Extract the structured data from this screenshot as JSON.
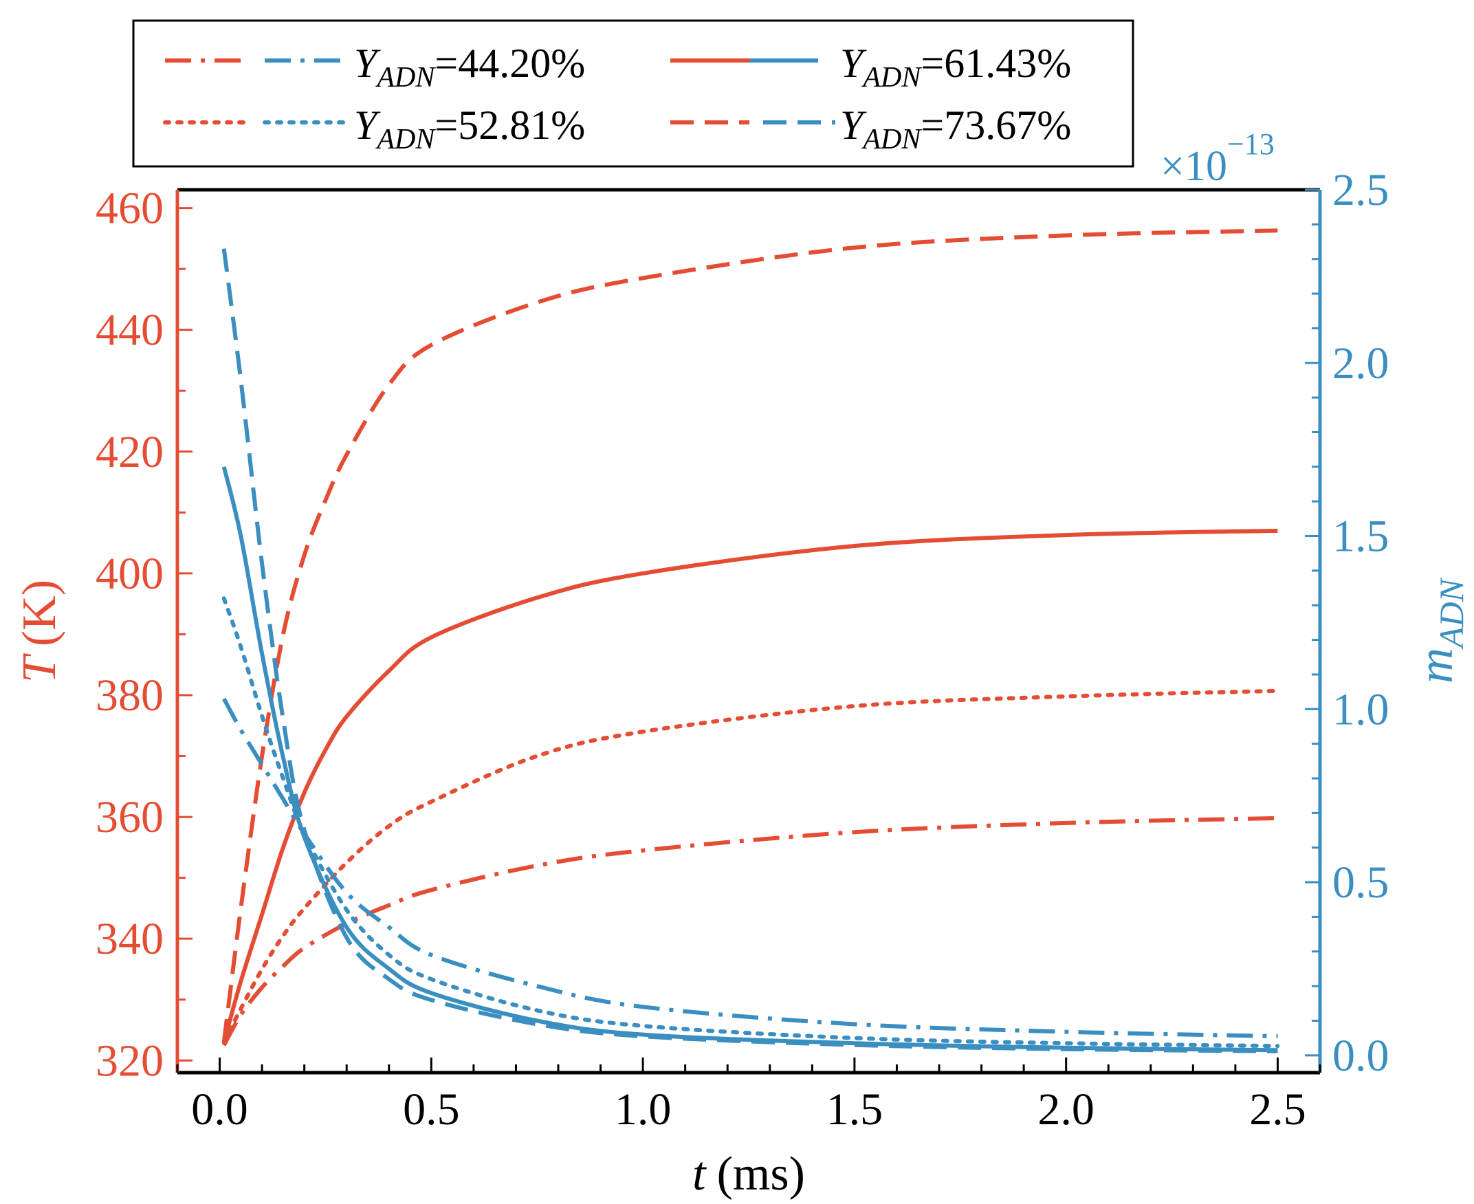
{
  "chart_data": {
    "type": "line",
    "xlabel": "t (ms)",
    "xlabel_italic_part": "t",
    "xlabel_unit": "(ms)",
    "ylabel_left": "T (K)",
    "ylabel_left_italic_part": "T",
    "ylabel_left_unit": "(K)",
    "ylabel_right": "m_ADN",
    "ylabel_right_main": "m",
    "ylabel_right_sub": "ADN",
    "right_axis_multiplier_base": "×10",
    "right_axis_multiplier_exponent": "−13",
    "xlim": [
      -0.1,
      2.6
    ],
    "ylim_left": [
      318,
      463
    ],
    "ylim_right": [
      -0.05,
      2.5
    ],
    "x_ticks": [
      "0.0",
      "0.5",
      "1.0",
      "1.5",
      "2.0",
      "2.5"
    ],
    "y_left_ticks": [
      "320",
      "340",
      "360",
      "380",
      "400",
      "420",
      "440",
      "460"
    ],
    "y_right_ticks": [
      "0.0",
      "0.5",
      "1.0",
      "1.5",
      "2.0",
      "2.5"
    ],
    "colors": {
      "temperature": "#e44d34",
      "mass": "#3a8fc0",
      "axis": "#000000"
    },
    "legend_placement": "top, above plot",
    "legend": [
      {
        "label_main": "Y",
        "label_sub": "ADN",
        "label_value": "=44.20%",
        "style": "dashdot"
      },
      {
        "label_main": "Y",
        "label_sub": "ADN",
        "label_value": "=61.43%",
        "style": "solid"
      },
      {
        "label_main": "Y",
        "label_sub": "ADN",
        "label_value": "=52.81%",
        "style": "dotted"
      },
      {
        "label_main": "Y",
        "label_sub": "ADN",
        "label_value": "=73.67%",
        "style": "dashed"
      }
    ],
    "series": [
      {
        "name": "T, Y_ADN=44.20%",
        "axis": "left",
        "color": "temperature",
        "style": "dashdot",
        "x": [
          0.01,
          0.05,
          0.1,
          0.15,
          0.2,
          0.3,
          0.4,
          0.5,
          0.75,
          1.0,
          1.5,
          2.0,
          2.5
        ],
        "y": [
          322.5,
          327.5,
          332.0,
          335.5,
          338.5,
          342.5,
          345.5,
          348.0,
          352.0,
          354.5,
          357.5,
          359.0,
          359.8
        ]
      },
      {
        "name": "T, Y_ADN=52.81%",
        "axis": "left",
        "color": "temperature",
        "style": "dotted",
        "x": [
          0.01,
          0.05,
          0.1,
          0.15,
          0.2,
          0.3,
          0.4,
          0.5,
          0.75,
          1.0,
          1.5,
          2.0,
          2.5
        ],
        "y": [
          323.0,
          328.5,
          335.0,
          340.5,
          345.0,
          352.5,
          358.5,
          362.5,
          370.0,
          374.0,
          378.2,
          379.8,
          380.7
        ]
      },
      {
        "name": "T, Y_ADN=61.43%",
        "axis": "left",
        "color": "temperature",
        "style": "solid",
        "x": [
          0.01,
          0.05,
          0.1,
          0.15,
          0.2,
          0.25,
          0.3,
          0.4,
          0.5,
          0.75,
          1.0,
          1.5,
          2.0,
          2.5
        ],
        "y": [
          323.0,
          333.0,
          344.0,
          355.0,
          364.0,
          371.0,
          376.5,
          384.0,
          389.5,
          396.0,
          400.0,
          404.5,
          406.3,
          407.0
        ]
      },
      {
        "name": "T, Y_ADN=73.67%",
        "axis": "left",
        "color": "temperature",
        "style": "dashed",
        "x": [
          0.01,
          0.05,
          0.1,
          0.15,
          0.2,
          0.25,
          0.3,
          0.4,
          0.5,
          0.75,
          1.0,
          1.5,
          2.0,
          2.5
        ],
        "y": [
          323.0,
          345.0,
          370.0,
          390.0,
          403.0,
          412.0,
          419.5,
          431.0,
          437.5,
          444.5,
          448.5,
          453.5,
          455.5,
          456.3
        ]
      },
      {
        "name": "m, Y_ADN=44.20%",
        "axis": "right",
        "color": "mass",
        "style": "dashdot",
        "x": [
          0.01,
          0.05,
          0.1,
          0.15,
          0.2,
          0.3,
          0.4,
          0.5,
          0.75,
          1.0,
          1.5,
          2.0,
          2.5
        ],
        "y": [
          1.03,
          0.94,
          0.84,
          0.74,
          0.64,
          0.47,
          0.37,
          0.29,
          0.2,
          0.14,
          0.09,
          0.068,
          0.055
        ]
      },
      {
        "name": "m, Y_ADN=52.81%",
        "axis": "right",
        "color": "mass",
        "style": "dotted",
        "x": [
          0.01,
          0.05,
          0.1,
          0.15,
          0.2,
          0.3,
          0.4,
          0.5,
          0.75,
          1.0,
          1.5,
          2.0,
          2.5
        ],
        "y": [
          1.32,
          1.18,
          0.98,
          0.8,
          0.64,
          0.42,
          0.29,
          0.22,
          0.13,
          0.085,
          0.05,
          0.035,
          0.027
        ]
      },
      {
        "name": "m, Y_ADN=61.43%",
        "axis": "right",
        "color": "mass",
        "style": "solid",
        "x": [
          0.01,
          0.05,
          0.1,
          0.15,
          0.2,
          0.3,
          0.4,
          0.5,
          0.75,
          1.0,
          1.5,
          2.0,
          2.5
        ],
        "y": [
          1.7,
          1.5,
          1.16,
          0.86,
          0.63,
          0.37,
          0.25,
          0.18,
          0.1,
          0.06,
          0.035,
          0.022,
          0.015
        ]
      },
      {
        "name": "m, Y_ADN=73.67%",
        "axis": "right",
        "color": "mass",
        "style": "dashed",
        "x": [
          0.01,
          0.05,
          0.1,
          0.15,
          0.2,
          0.3,
          0.4,
          0.5,
          0.75,
          1.0,
          1.5,
          2.0,
          2.5
        ],
        "y": [
          2.33,
          1.95,
          1.42,
          0.97,
          0.65,
          0.34,
          0.22,
          0.16,
          0.09,
          0.055,
          0.03,
          0.018,
          0.012
        ]
      }
    ]
  }
}
